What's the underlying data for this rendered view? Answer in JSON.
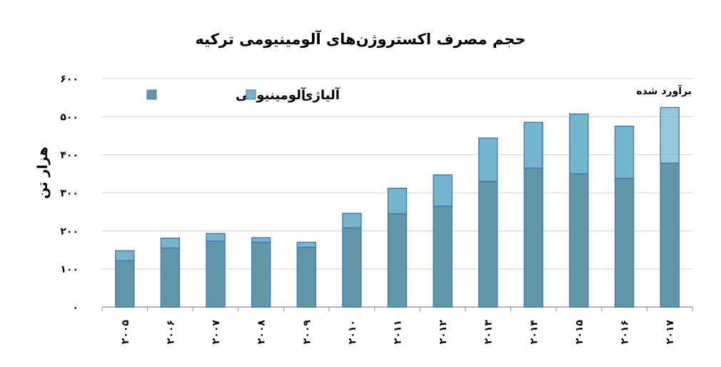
{
  "chart_data": {
    "type": "bar",
    "stacked": true,
    "title": "حجم مصرف اکستروژن‌های آلومینیومی ترکیه",
    "ylabel": "هزار تن",
    "xlabel": "",
    "ylim": [
      0,
      600
    ],
    "yticks": [
      0,
      100,
      200,
      300,
      400,
      500,
      600
    ],
    "ytick_labels": [
      "۰",
      "۱۰۰",
      "۲۰۰",
      "۳۰۰",
      "۴۰۰",
      "۵۰۰",
      "۶۰۰"
    ],
    "categories": [
      "۲۰۰۵",
      "۲۰۰۶",
      "۲۰۰۷",
      "۲۰۰۸",
      "۲۰۰۹",
      "۲۰۱۰",
      "۲۰۱۱",
      "۲۰۱۲",
      "۲۰۱۳",
      "۲۰۱۴",
      "۲۰۱۵",
      "۲۰۱۶",
      "۲۰۱۷"
    ],
    "series": [
      {
        "name": "آلومینیومی",
        "color": "#5f97a8",
        "values": [
          122,
          155,
          173,
          170,
          157,
          208,
          245,
          265,
          330,
          365,
          350,
          338,
          378
        ]
      },
      {
        "name": "آلیاژی",
        "color": "#74b7cd",
        "values": [
          26,
          26,
          20,
          12,
          13,
          38,
          67,
          82,
          114,
          120,
          157,
          137,
          146
        ]
      }
    ],
    "grid": true,
    "legend_position": "top-left",
    "annotation": {
      "text": "برآورد شده",
      "category": "۲۰۱۷"
    },
    "bar_border_color": "#4a72b8"
  }
}
